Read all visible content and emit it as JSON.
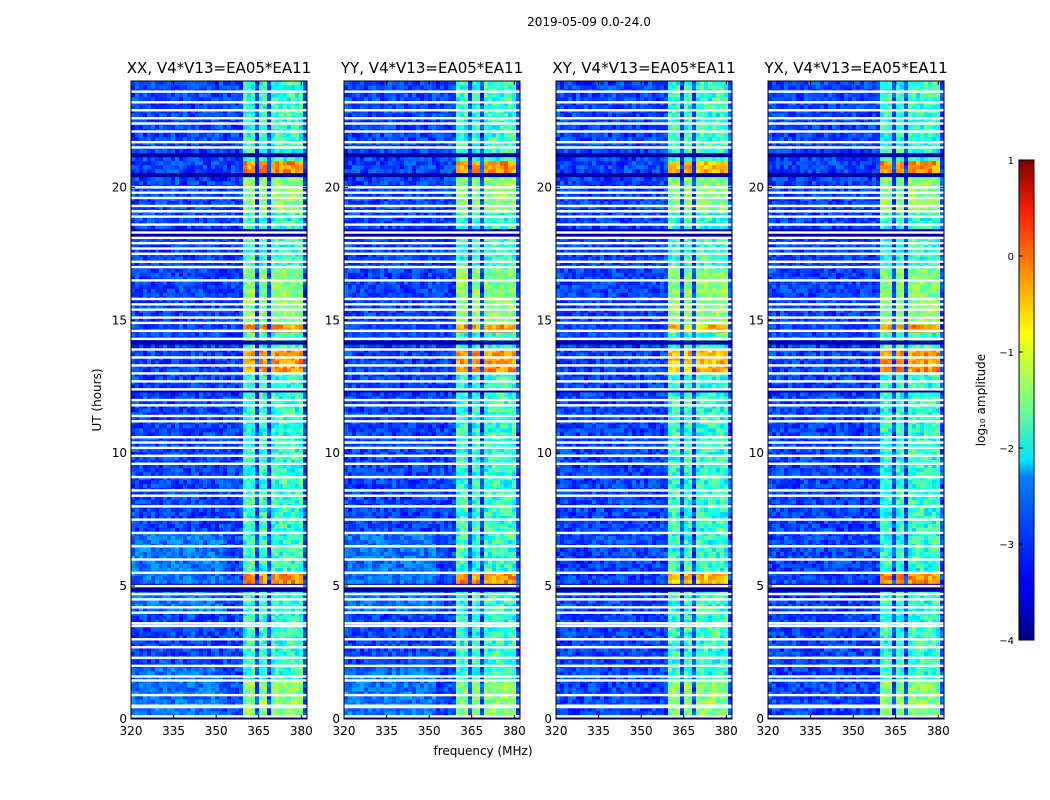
{
  "chart_data": {
    "type": "heatmap",
    "suptitle": "2019-05-09 0.0-24.0",
    "xlabel": "frequency (MHz)",
    "ylabel": "UT (hours)",
    "xlim": [
      320,
      382
    ],
    "ylim": [
      0,
      24
    ],
    "xticks": [
      320,
      335,
      350,
      365,
      380
    ],
    "yticks": [
      0,
      5,
      10,
      15,
      20
    ],
    "panels": [
      {
        "title": "XX, V4*V13=EA05*EA11",
        "pol": "XX"
      },
      {
        "title": "YY, V4*V13=EA05*EA11",
        "pol": "YY"
      },
      {
        "title": "XY, V4*V13=EA05*EA11",
        "pol": "XY"
      },
      {
        "title": "YX, V4*V13=EA05*EA11",
        "pol": "YX"
      }
    ],
    "signal_band_mhz": [
      359.5,
      380
    ],
    "signal_subbands_mhz": [
      [
        359.5,
        364
      ],
      [
        364.7,
        368.5
      ],
      [
        369.3,
        373
      ],
      [
        373.7,
        377.5
      ],
      [
        378.3,
        380
      ]
    ],
    "flagged_hours": [
      0.1,
      0.45,
      0.5,
      0.9,
      1.45,
      1.6,
      2.0,
      2.3,
      2.7,
      3.0,
      3.5,
      3.6,
      4.0,
      4.2,
      4.5,
      4.7,
      5.0,
      5.5,
      6.0,
      6.5,
      7.0,
      7.5,
      8.0,
      8.4,
      8.6,
      9.1,
      9.6,
      9.9,
      10.2,
      10.4,
      10.6,
      11.2,
      11.4,
      11.8,
      12.0,
      12.4,
      12.7,
      13.0,
      13.3,
      13.6,
      13.9,
      14.3,
      14.6,
      14.9,
      15.1,
      15.4,
      15.6,
      15.8,
      16.5,
      17.0,
      17.2,
      17.5,
      17.7,
      17.9,
      18.1,
      18.3,
      18.6,
      18.9,
      19.1,
      19.3,
      19.6,
      19.8,
      20.0,
      21.5,
      21.7,
      22.1,
      22.4,
      22.6,
      22.9,
      23.2,
      23.6
    ],
    "dark_hours": [
      0.0,
      4.95,
      12.4,
      14.2,
      18.3,
      20.5,
      21.2
    ],
    "bright_hours": [
      [
        5.0,
        5.5
      ],
      [
        13.0,
        14.0
      ],
      [
        20.5,
        21.0
      ],
      [
        14.6,
        14.8
      ]
    ],
    "colorbar": {
      "label": "log₁₀ amplitude",
      "range": [
        -4,
        1
      ],
      "ticks": [
        1,
        0,
        -1,
        -2,
        -3,
        -4
      ],
      "tick_labels": [
        "1",
        "0",
        "−1",
        "−2",
        "−3",
        "−4"
      ],
      "colormap": "jet"
    }
  }
}
